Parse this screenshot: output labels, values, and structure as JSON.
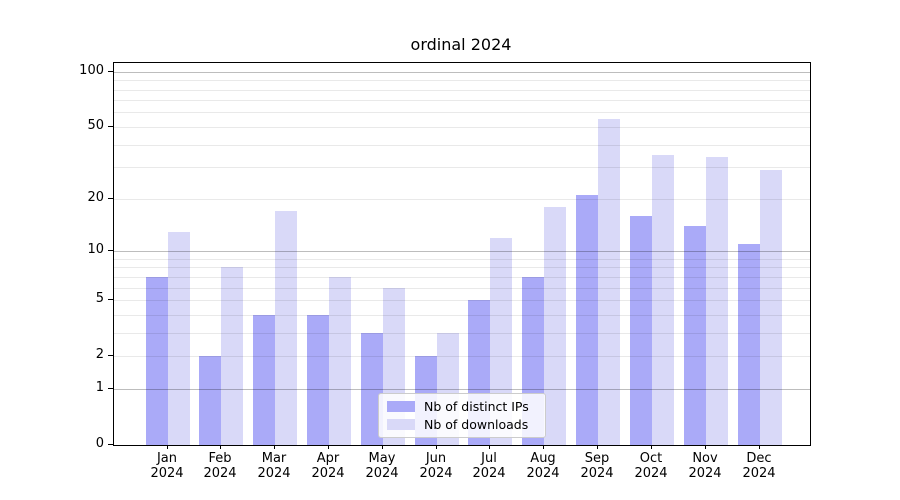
{
  "title": "ordinal 2024",
  "legend": {
    "items": [
      {
        "label": "Nb of distinct IPs",
        "color": "#aaaaf8"
      },
      {
        "label": "Nb of downloads",
        "color": "#d9d9f8"
      }
    ]
  },
  "chart_data": {
    "type": "bar",
    "title": "ordinal 2024",
    "categories": [
      "Jan 2024",
      "Feb 2024",
      "Mar 2024",
      "Apr 2024",
      "May 2024",
      "Jun 2024",
      "Jul 2024",
      "Aug 2024",
      "Sep 2024",
      "Oct 2024",
      "Nov 2024",
      "Dec 2024"
    ],
    "series": [
      {
        "name": "Nb of distinct IPs",
        "color": "#aaaaf8",
        "values": [
          7,
          2,
          4,
          4,
          3,
          2,
          5,
          7,
          21,
          16,
          14,
          11
        ]
      },
      {
        "name": "Nb of downloads",
        "color": "#d9d9f8",
        "values": [
          13,
          8,
          17,
          7,
          6,
          3,
          12,
          18,
          55,
          35,
          34,
          29
        ]
      }
    ],
    "xlabel": "",
    "ylabel": "",
    "yscale": "log1p",
    "ylim": [
      0,
      112
    ],
    "yticks": [
      0,
      1,
      2,
      5,
      10,
      20,
      50,
      100
    ],
    "ytick_labels": [
      "0",
      "1",
      "2",
      "5",
      "10",
      "20",
      "50",
      "100"
    ],
    "major_gridlines": [
      1,
      10,
      100
    ],
    "minor_gridlines": [
      2,
      3,
      4,
      5,
      6,
      7,
      8,
      9,
      20,
      30,
      40,
      50,
      60,
      70,
      80,
      90
    ],
    "grid": true,
    "legend_position": "lower center"
  }
}
